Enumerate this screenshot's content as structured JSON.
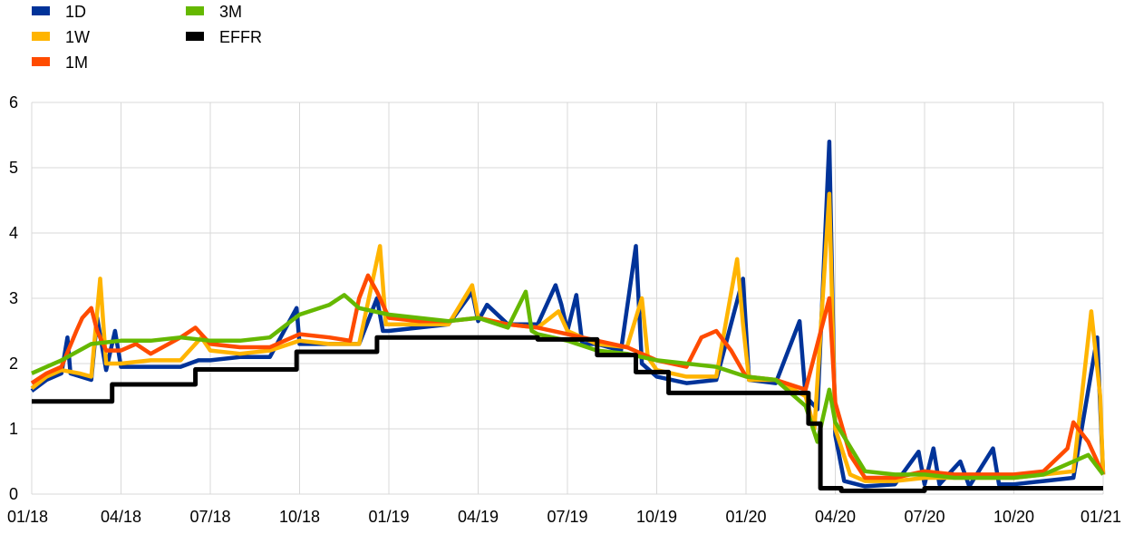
{
  "chart_data": {
    "type": "line",
    "title": "",
    "xlabel": "",
    "ylabel": "",
    "ylim": [
      0,
      6
    ],
    "yticks": [
      "0",
      "1",
      "2",
      "3",
      "4",
      "5",
      "6"
    ],
    "x_ticks": [
      {
        "label": "01/18",
        "t": "2018-01"
      },
      {
        "label": "04/18",
        "t": "2018-04"
      },
      {
        "label": "07/18",
        "t": "2018-07"
      },
      {
        "label": "10/18",
        "t": "2018-10"
      },
      {
        "label": "01/19",
        "t": "2019-01"
      },
      {
        "label": "04/19",
        "t": "2019-04"
      },
      {
        "label": "07/19",
        "t": "2019-07"
      },
      {
        "label": "10/19",
        "t": "2019-10"
      },
      {
        "label": "01/20",
        "t": "2020-01"
      },
      {
        "label": "04/20",
        "t": "2020-04"
      },
      {
        "label": "07/20",
        "t": "2020-07"
      },
      {
        "label": "10/20",
        "t": "2020-10"
      },
      {
        "label": "01/21",
        "t": "2021-01"
      }
    ],
    "xlim": [
      "2018-01",
      "2021-01"
    ],
    "grid": true,
    "legend_position": "top-left",
    "series": [
      {
        "name": "1D",
        "color": "#003399",
        "points": [
          [
            "2018-01",
            1.58
          ],
          [
            "2018-01.5",
            1.75
          ],
          [
            "2018-02",
            1.85
          ],
          [
            "2018-02.2",
            2.4
          ],
          [
            "2018-02.3",
            1.85
          ],
          [
            "2018-03",
            1.75
          ],
          [
            "2018-03.2",
            2.7
          ],
          [
            "2018-03.5",
            1.9
          ],
          [
            "2018-03.8",
            2.5
          ],
          [
            "2018-04",
            1.95
          ],
          [
            "2018-05",
            1.95
          ],
          [
            "2018-06",
            1.95
          ],
          [
            "2018-06.6",
            2.05
          ],
          [
            "2018-07",
            2.05
          ],
          [
            "2018-08",
            2.1
          ],
          [
            "2018-09",
            2.1
          ],
          [
            "2018-09.9",
            2.85
          ],
          [
            "2018-10",
            2.3
          ],
          [
            "2018-11",
            2.3
          ],
          [
            "2018-12",
            2.3
          ],
          [
            "2018-12.6",
            3.0
          ],
          [
            "2018-12.8",
            2.5
          ],
          [
            "2019-01",
            2.5
          ],
          [
            "2019-02",
            2.55
          ],
          [
            "2019-03",
            2.6
          ],
          [
            "2019-03.8",
            3.1
          ],
          [
            "2019-04",
            2.65
          ],
          [
            "2019-04.3",
            2.9
          ],
          [
            "2019-05",
            2.6
          ],
          [
            "2019-06",
            2.6
          ],
          [
            "2019-06.6",
            3.2
          ],
          [
            "2019-06.8",
            2.9
          ],
          [
            "2019-07",
            2.5
          ],
          [
            "2019-07.3",
            3.05
          ],
          [
            "2019-07.5",
            2.3
          ],
          [
            "2019-08",
            2.3
          ],
          [
            "2019-08.8",
            2.2
          ],
          [
            "2019-09.3",
            3.8
          ],
          [
            "2019-09.5",
            2.0
          ],
          [
            "2019-10",
            1.8
          ],
          [
            "2019-11",
            1.7
          ],
          [
            "2019-12",
            1.75
          ],
          [
            "2019-12.9",
            3.3
          ],
          [
            "2020-01.1",
            1.75
          ],
          [
            "2020-02",
            1.7
          ],
          [
            "2020-02.8",
            2.65
          ],
          [
            "2020-03",
            1.5
          ],
          [
            "2020-03.4",
            1.3
          ],
          [
            "2020-03.8",
            5.4
          ],
          [
            "2020-04",
            0.9
          ],
          [
            "2020-04.3",
            0.2
          ],
          [
            "2020-05",
            0.12
          ],
          [
            "2020-06",
            0.15
          ],
          [
            "2020-06.8",
            0.65
          ],
          [
            "2020-07",
            0.15
          ],
          [
            "2020-07.3",
            0.7
          ],
          [
            "2020-07.5",
            0.15
          ],
          [
            "2020-08.2",
            0.5
          ],
          [
            "2020-08.5",
            0.12
          ],
          [
            "2020-09.3",
            0.7
          ],
          [
            "2020-09.5",
            0.15
          ],
          [
            "2020-10",
            0.15
          ],
          [
            "2020-11",
            0.2
          ],
          [
            "2020-12",
            0.25
          ],
          [
            "2020-12.8",
            2.4
          ],
          [
            "2021-01",
            0.3
          ]
        ]
      },
      {
        "name": "1W",
        "color": "#FFB400",
        "points": [
          [
            "2018-01",
            1.62
          ],
          [
            "2018-01.5",
            1.8
          ],
          [
            "2018-02",
            1.9
          ],
          [
            "2018-02.6",
            1.85
          ],
          [
            "2018-03",
            1.8
          ],
          [
            "2018-03.3",
            3.3
          ],
          [
            "2018-03.5",
            2.0
          ],
          [
            "2018-04",
            2.0
          ],
          [
            "2018-05",
            2.05
          ],
          [
            "2018-06",
            2.05
          ],
          [
            "2018-06.7",
            2.4
          ],
          [
            "2018-07",
            2.2
          ],
          [
            "2018-08",
            2.15
          ],
          [
            "2018-09",
            2.2
          ],
          [
            "2018-10",
            2.35
          ],
          [
            "2018-11",
            2.3
          ],
          [
            "2018-12",
            2.3
          ],
          [
            "2018-12.7",
            3.8
          ],
          [
            "2018-12.9",
            2.6
          ],
          [
            "2019-01",
            2.6
          ],
          [
            "2019-02",
            2.6
          ],
          [
            "2019-03",
            2.6
          ],
          [
            "2019-03.8",
            3.2
          ],
          [
            "2019-04",
            2.7
          ],
          [
            "2019-05",
            2.6
          ],
          [
            "2019-06",
            2.55
          ],
          [
            "2019-06.7",
            2.8
          ],
          [
            "2019-07",
            2.5
          ],
          [
            "2019-08",
            2.3
          ],
          [
            "2019-09",
            2.25
          ],
          [
            "2019-09.5",
            3.0
          ],
          [
            "2019-09.7",
            2.1
          ],
          [
            "2019-10",
            1.9
          ],
          [
            "2019-11",
            1.8
          ],
          [
            "2019-12",
            1.8
          ],
          [
            "2019-12.7",
            3.6
          ],
          [
            "2019-12.9",
            2.6
          ],
          [
            "2020-01.1",
            1.75
          ],
          [
            "2020-02",
            1.75
          ],
          [
            "2020-03",
            1.5
          ],
          [
            "2020-03.3",
            1.0
          ],
          [
            "2020-03.8",
            4.6
          ],
          [
            "2020-04",
            1.0
          ],
          [
            "2020-04.5",
            0.3
          ],
          [
            "2020-05",
            0.2
          ],
          [
            "2020-06",
            0.2
          ],
          [
            "2020-07",
            0.25
          ],
          [
            "2020-08",
            0.25
          ],
          [
            "2020-09",
            0.25
          ],
          [
            "2020-10",
            0.25
          ],
          [
            "2020-11",
            0.3
          ],
          [
            "2020-12",
            0.35
          ],
          [
            "2020-12.6",
            2.8
          ],
          [
            "2020-12.9",
            1.5
          ],
          [
            "2021-01",
            0.3
          ]
        ]
      },
      {
        "name": "1M",
        "color": "#FF4B00",
        "points": [
          [
            "2018-01",
            1.7
          ],
          [
            "2018-01.5",
            1.85
          ],
          [
            "2018-02",
            1.95
          ],
          [
            "2018-02.5",
            2.5
          ],
          [
            "2018-02.7",
            2.7
          ],
          [
            "2018-03",
            2.85
          ],
          [
            "2018-03.2",
            2.5
          ],
          [
            "2018-03.5",
            2.2
          ],
          [
            "2018-04",
            2.2
          ],
          [
            "2018-04.5",
            2.3
          ],
          [
            "2018-05",
            2.15
          ],
          [
            "2018-06",
            2.4
          ],
          [
            "2018-06.5",
            2.55
          ],
          [
            "2018-07",
            2.3
          ],
          [
            "2018-08",
            2.25
          ],
          [
            "2018-09",
            2.25
          ],
          [
            "2018-10",
            2.45
          ],
          [
            "2018-11",
            2.4
          ],
          [
            "2018-11.7",
            2.35
          ],
          [
            "2018-12",
            3.0
          ],
          [
            "2018-12.3",
            3.35
          ],
          [
            "2018-12.6",
            3.1
          ],
          [
            "2019-01",
            2.7
          ],
          [
            "2019-02",
            2.65
          ],
          [
            "2019-03",
            2.65
          ],
          [
            "2019-04",
            2.7
          ],
          [
            "2019-05",
            2.6
          ],
          [
            "2019-06",
            2.55
          ],
          [
            "2019-07",
            2.45
          ],
          [
            "2019-08",
            2.35
          ],
          [
            "2019-09",
            2.25
          ],
          [
            "2019-10",
            2.05
          ],
          [
            "2019-11",
            1.95
          ],
          [
            "2019-11.5",
            2.4
          ],
          [
            "2019-12",
            2.5
          ],
          [
            "2019-12.5",
            2.2
          ],
          [
            "2020-01",
            1.8
          ],
          [
            "2020-02",
            1.75
          ],
          [
            "2020-03",
            1.6
          ],
          [
            "2020-03.8",
            3.0
          ],
          [
            "2020-04",
            1.4
          ],
          [
            "2020-04.5",
            0.6
          ],
          [
            "2020-05",
            0.25
          ],
          [
            "2020-06",
            0.25
          ],
          [
            "2020-07",
            0.35
          ],
          [
            "2020-08",
            0.3
          ],
          [
            "2020-09",
            0.3
          ],
          [
            "2020-10",
            0.3
          ],
          [
            "2020-11",
            0.35
          ],
          [
            "2020-11.8",
            0.7
          ],
          [
            "2020-12",
            1.1
          ],
          [
            "2020-12.5",
            0.8
          ],
          [
            "2021-01",
            0.3
          ]
        ]
      },
      {
        "name": "3M",
        "color": "#65B800",
        "points": [
          [
            "2018-01",
            1.85
          ],
          [
            "2018-01.5",
            1.95
          ],
          [
            "2018-02",
            2.05
          ],
          [
            "2018-03",
            2.3
          ],
          [
            "2018-04",
            2.35
          ],
          [
            "2018-05",
            2.35
          ],
          [
            "2018-06",
            2.4
          ],
          [
            "2018-07",
            2.35
          ],
          [
            "2018-08",
            2.35
          ],
          [
            "2018-09",
            2.4
          ],
          [
            "2018-10",
            2.75
          ],
          [
            "2018-11",
            2.9
          ],
          [
            "2018-11.5",
            3.05
          ],
          [
            "2018-12",
            2.85
          ],
          [
            "2019-01",
            2.75
          ],
          [
            "2019-02",
            2.7
          ],
          [
            "2019-03",
            2.65
          ],
          [
            "2019-04",
            2.7
          ],
          [
            "2019-05",
            2.55
          ],
          [
            "2019-05.6",
            3.1
          ],
          [
            "2019-05.8",
            2.5
          ],
          [
            "2019-06",
            2.45
          ],
          [
            "2019-07",
            2.35
          ],
          [
            "2019-08",
            2.2
          ],
          [
            "2019-09",
            2.15
          ],
          [
            "2019-10",
            2.05
          ],
          [
            "2019-11",
            2.0
          ],
          [
            "2019-12",
            1.95
          ],
          [
            "2020-01",
            1.8
          ],
          [
            "2020-02",
            1.75
          ],
          [
            "2020-03",
            1.35
          ],
          [
            "2020-03.4",
            0.8
          ],
          [
            "2020-03.8",
            1.6
          ],
          [
            "2020-04",
            1.1
          ],
          [
            "2020-05",
            0.35
          ],
          [
            "2020-06",
            0.3
          ],
          [
            "2020-07",
            0.3
          ],
          [
            "2020-08",
            0.25
          ],
          [
            "2020-09",
            0.25
          ],
          [
            "2020-10",
            0.25
          ],
          [
            "2020-11",
            0.3
          ],
          [
            "2020-12",
            0.5
          ],
          [
            "2020-12.5",
            0.6
          ],
          [
            "2021-01",
            0.3
          ]
        ]
      },
      {
        "name": "EFFR",
        "color": "#000000",
        "step": true,
        "points": [
          [
            "2018-01",
            1.42
          ],
          [
            "2018-03.7",
            1.68
          ],
          [
            "2018-06.5",
            1.91
          ],
          [
            "2018-09.9",
            2.18
          ],
          [
            "2018-12.6",
            2.4
          ],
          [
            "2019-06",
            2.37
          ],
          [
            "2019-08",
            2.13
          ],
          [
            "2019-09.3",
            1.87
          ],
          [
            "2019-10.4",
            1.55
          ],
          [
            "2020-03.1",
            1.08
          ],
          [
            "2020-03.5",
            0.09
          ],
          [
            "2020-04.2",
            0.05
          ],
          [
            "2020-07",
            0.09
          ],
          [
            "2020-12",
            0.09
          ],
          [
            "2021-01",
            0.09
          ]
        ]
      }
    ]
  }
}
